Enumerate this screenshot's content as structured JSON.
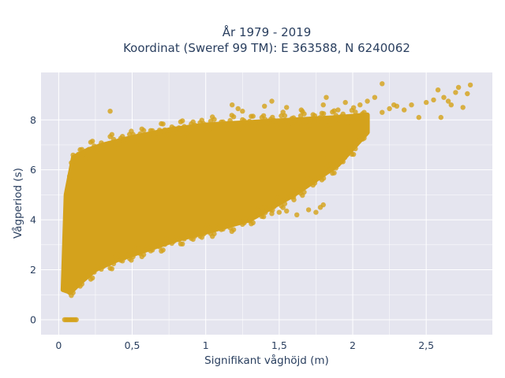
{
  "chart_data": {
    "type": "scatter",
    "title": "År 1979 - 2019",
    "subtitle": "Koordinat (Sweref 99 TM): E 363588, N 6240062",
    "xlabel": "Signifikant våghöjd (m)",
    "ylabel": "Vågperiod (s)",
    "xlim": [
      -0.12,
      2.95
    ],
    "ylim": [
      -0.6,
      9.9
    ],
    "xticks": [
      0,
      0.5,
      1,
      1.5,
      2,
      2.5
    ],
    "xtick_labels": [
      "0",
      "0,5",
      "1",
      "1,5",
      "2",
      "2,5"
    ],
    "yticks": [
      0,
      2,
      4,
      6,
      8
    ],
    "ytick_labels": [
      "0",
      "2",
      "4",
      "6",
      "8"
    ],
    "grid": true,
    "marker_color": "#D4A21C",
    "plot_background": "#E5E5EF",
    "zero_period_points": [
      {
        "x": 0.04,
        "y": 0
      },
      {
        "x": 0.05,
        "y": 0
      },
      {
        "x": 0.06,
        "y": 0
      },
      {
        "x": 0.07,
        "y": 0
      },
      {
        "x": 0.08,
        "y": 0
      },
      {
        "x": 0.09,
        "y": 0
      },
      {
        "x": 0.1,
        "y": 0
      },
      {
        "x": 0.11,
        "y": 0
      },
      {
        "x": 0.12,
        "y": 0
      }
    ],
    "upper_cloud_edge": [
      {
        "x": 0.03,
        "y": 1.2
      },
      {
        "x": 0.05,
        "y": 5.0
      },
      {
        "x": 0.1,
        "y": 6.5
      },
      {
        "x": 0.2,
        "y": 6.8
      },
      {
        "x": 0.3,
        "y": 7.0
      },
      {
        "x": 0.5,
        "y": 7.3
      },
      {
        "x": 0.75,
        "y": 7.6
      },
      {
        "x": 1.0,
        "y": 7.8
      },
      {
        "x": 1.3,
        "y": 7.9
      },
      {
        "x": 1.6,
        "y": 8.0
      },
      {
        "x": 1.9,
        "y": 8.1
      },
      {
        "x": 2.1,
        "y": 8.2
      }
    ],
    "lower_cloud_edge": [
      {
        "x": 0.03,
        "y": 1.2
      },
      {
        "x": 0.08,
        "y": 1.1
      },
      {
        "x": 0.15,
        "y": 1.5
      },
      {
        "x": 0.25,
        "y": 2.0
      },
      {
        "x": 0.4,
        "y": 2.4
      },
      {
        "x": 0.6,
        "y": 2.8
      },
      {
        "x": 0.8,
        "y": 3.2
      },
      {
        "x": 1.0,
        "y": 3.5
      },
      {
        "x": 1.3,
        "y": 4.0
      },
      {
        "x": 1.6,
        "y": 5.0
      },
      {
        "x": 1.9,
        "y": 6.2
      },
      {
        "x": 2.1,
        "y": 7.5
      }
    ],
    "outliers": [
      {
        "x": 0.35,
        "y": 8.35
      },
      {
        "x": 1.18,
        "y": 8.6
      },
      {
        "x": 1.22,
        "y": 8.45
      },
      {
        "x": 1.25,
        "y": 8.35
      },
      {
        "x": 1.4,
        "y": 8.55
      },
      {
        "x": 1.45,
        "y": 8.75
      },
      {
        "x": 1.55,
        "y": 8.5
      },
      {
        "x": 1.65,
        "y": 8.4
      },
      {
        "x": 1.8,
        "y": 8.6
      },
      {
        "x": 1.82,
        "y": 8.9
      },
      {
        "x": 1.9,
        "y": 8.4
      },
      {
        "x": 1.95,
        "y": 8.7
      },
      {
        "x": 2.05,
        "y": 8.6
      },
      {
        "x": 2.1,
        "y": 8.75
      },
      {
        "x": 2.15,
        "y": 8.9
      },
      {
        "x": 2.2,
        "y": 8.3
      },
      {
        "x": 2.25,
        "y": 8.45
      },
      {
        "x": 2.28,
        "y": 8.6
      },
      {
        "x": 2.2,
        "y": 9.45
      },
      {
        "x": 2.3,
        "y": 8.55
      },
      {
        "x": 2.35,
        "y": 8.4
      },
      {
        "x": 2.4,
        "y": 8.6
      },
      {
        "x": 2.45,
        "y": 8.1
      },
      {
        "x": 2.5,
        "y": 8.7
      },
      {
        "x": 2.55,
        "y": 8.8
      },
      {
        "x": 2.6,
        "y": 8.1
      },
      {
        "x": 2.62,
        "y": 8.9
      },
      {
        "x": 2.65,
        "y": 8.75
      },
      {
        "x": 2.7,
        "y": 9.1
      },
      {
        "x": 2.72,
        "y": 9.3
      },
      {
        "x": 2.75,
        "y": 8.5
      },
      {
        "x": 2.78,
        "y": 9.05
      },
      {
        "x": 2.8,
        "y": 9.4
      },
      {
        "x": 2.67,
        "y": 8.6
      },
      {
        "x": 2.58,
        "y": 9.2
      },
      {
        "x": 1.5,
        "y": 4.3
      },
      {
        "x": 1.55,
        "y": 4.35
      },
      {
        "x": 1.62,
        "y": 4.2
      },
      {
        "x": 1.7,
        "y": 4.4
      },
      {
        "x": 1.78,
        "y": 4.5
      },
      {
        "x": 1.8,
        "y": 4.6
      },
      {
        "x": 1.75,
        "y": 4.3
      },
      {
        "x": 1.4,
        "y": 4.5
      },
      {
        "x": 1.45,
        "y": 4.25
      },
      {
        "x": 1.3,
        "y": 4.6
      },
      {
        "x": 1.6,
        "y": 4.8
      },
      {
        "x": 1.35,
        "y": 4.4
      },
      {
        "x": 1.85,
        "y": 6.2
      },
      {
        "x": 1.9,
        "y": 6.4
      },
      {
        "x": 1.98,
        "y": 6.8
      },
      {
        "x": 2.05,
        "y": 7.2
      },
      {
        "x": 1.8,
        "y": 6.5
      }
    ]
  }
}
